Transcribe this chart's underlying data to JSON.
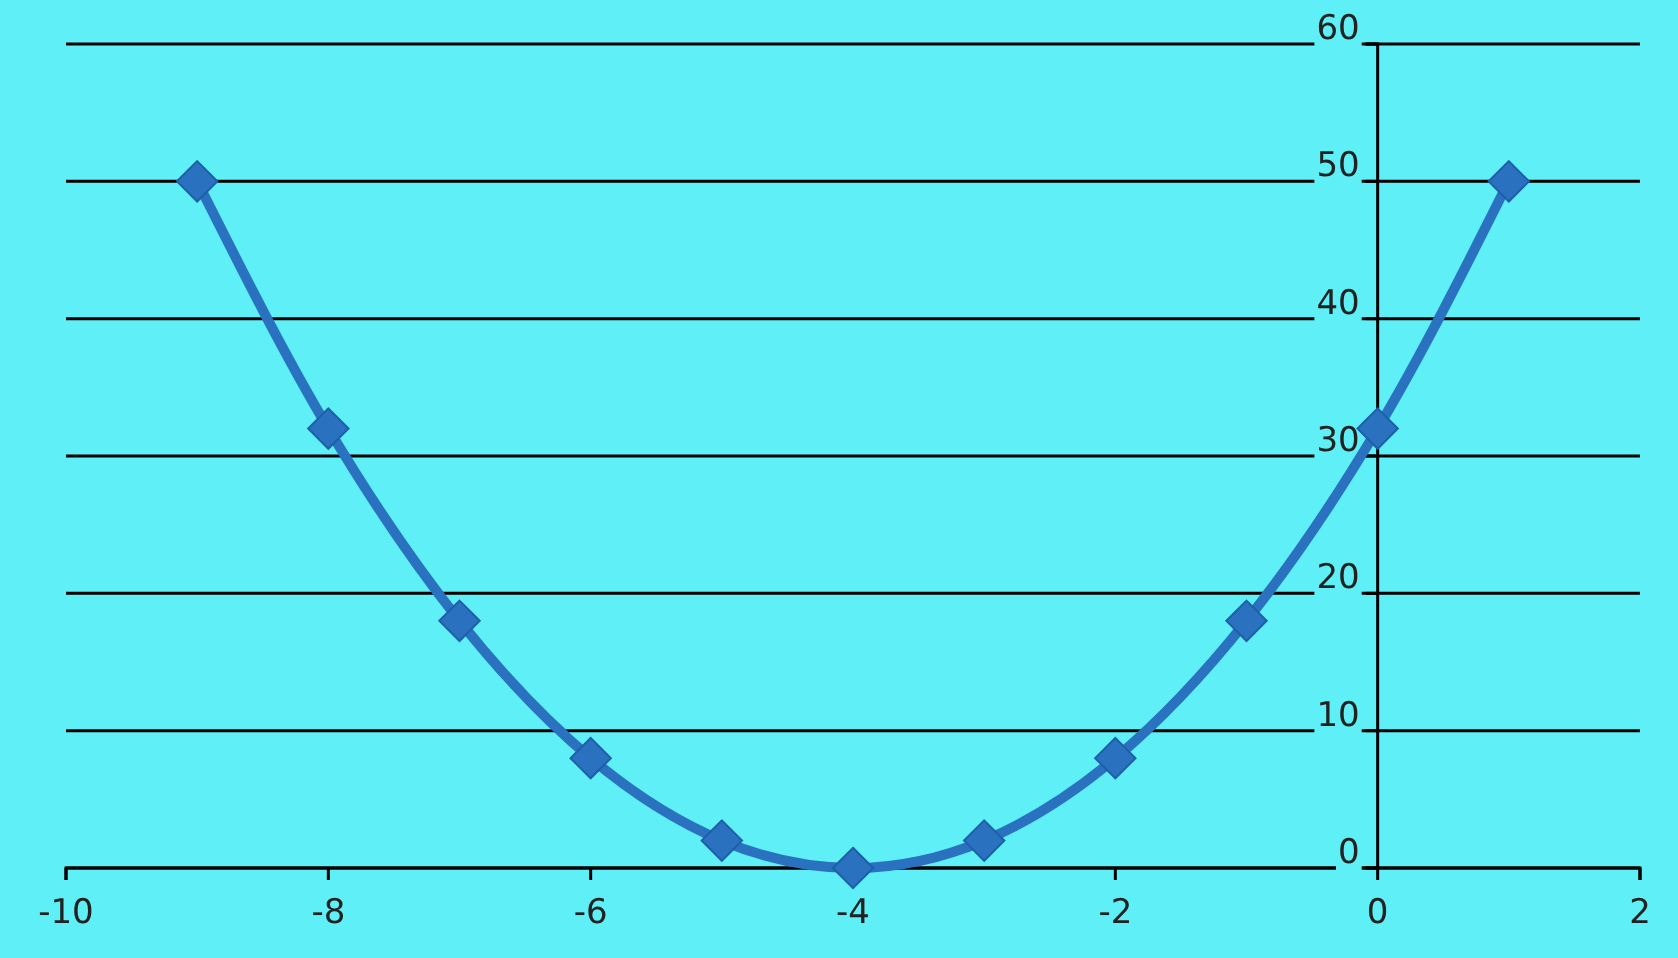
{
  "chart_data": {
    "type": "line",
    "x": [
      -9,
      -8,
      -7,
      -6,
      -5,
      -4,
      -3,
      -2,
      -1,
      0,
      1
    ],
    "series": [
      {
        "color": "#2a72bf",
        "values": [
          50,
          32,
          18,
          8,
          2,
          0,
          2,
          8,
          18,
          32,
          50
        ]
      }
    ],
    "xlim": [
      -10,
      2
    ],
    "ylim": [
      0,
      60
    ],
    "xticks": [
      -10,
      -8,
      -6,
      -4,
      -2,
      0,
      2
    ],
    "yticks": [
      0,
      10,
      20,
      30,
      40,
      50,
      60
    ],
    "grid": "y",
    "marker": "diamond",
    "line_style": "solid"
  }
}
